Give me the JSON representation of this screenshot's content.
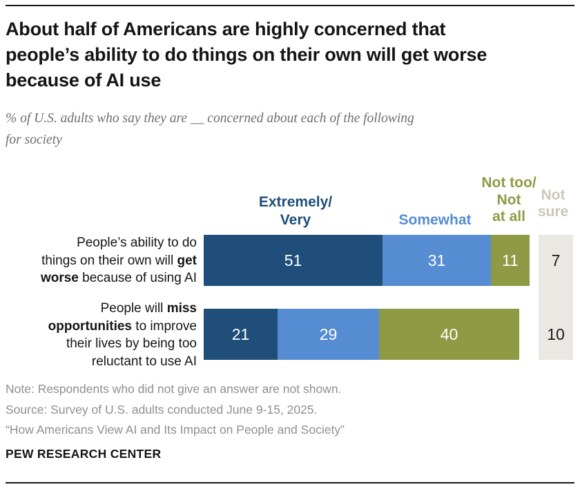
{
  "header": {
    "title": "About half of Americans are highly concerned that\npeople’s ability to do things on their own will get worse\nbecause of AI use",
    "subtitle": "% of U.S. adults who say they are __ concerned about each of the following\nfor society"
  },
  "chart_data": {
    "type": "bar",
    "variant": "horizontal-stacked",
    "unit": "% of U.S. adults",
    "axis_range": [
      0,
      100
    ],
    "grid": false,
    "legend_position": "above-bars",
    "legend": [
      {
        "id": "extremely-very",
        "label": "Extremely/\nVery",
        "color": "#1E4E79"
      },
      {
        "id": "somewhat",
        "label": "Somewhat",
        "color": "#568CD2"
      },
      {
        "id": "not-too-not-at-all",
        "label": "Not too/\nNot\nat all",
        "color": "#8F9A45"
      },
      {
        "id": "not-sure",
        "label": "Not\nsure",
        "color": "#CBC7B9",
        "column_bg": "#EAE8E3"
      }
    ],
    "categories": [
      "People’s ability to do things on their own will get worse because of using AI",
      "People will miss opportunities to improve their lives by being too reluctant to use AI"
    ],
    "rows": [
      {
        "label_runs": [
          [
            {
              "t": "People’s ability to do",
              "b": false
            }
          ],
          [
            {
              "t": "things on their own will ",
              "b": false
            },
            {
              "t": "get",
              "b": true
            }
          ],
          [
            {
              "t": "worse",
              "b": true
            },
            {
              "t": " because of using AI",
              "b": false
            }
          ]
        ],
        "values": [
          51,
          31,
          11
        ],
        "not_sure": 7
      },
      {
        "label_runs": [
          [
            {
              "t": "People will ",
              "b": false
            },
            {
              "t": "miss",
              "b": true
            }
          ],
          [
            {
              "t": "opportunities",
              "b": true
            },
            {
              "t": " to improve",
              "b": false
            }
          ],
          [
            {
              "t": "their lives by being too",
              "b": false
            }
          ],
          [
            {
              "t": "reluctant to use AI",
              "b": false
            }
          ]
        ],
        "values": [
          21,
          29,
          40
        ],
        "not_sure": 10
      }
    ],
    "value_label_color_on_bar": "#FFFFFF",
    "value_label_color_not_sure": "#1A1A1A"
  },
  "footer": {
    "note": "Note: Respondents who did not give an answer are not shown.",
    "source": "Source: Survey of U.S. adults conducted June 9-15, 2025.",
    "report": "“How Americans View AI and Its Impact on People and Society”",
    "brand": "PEW RESEARCH CENTER"
  }
}
